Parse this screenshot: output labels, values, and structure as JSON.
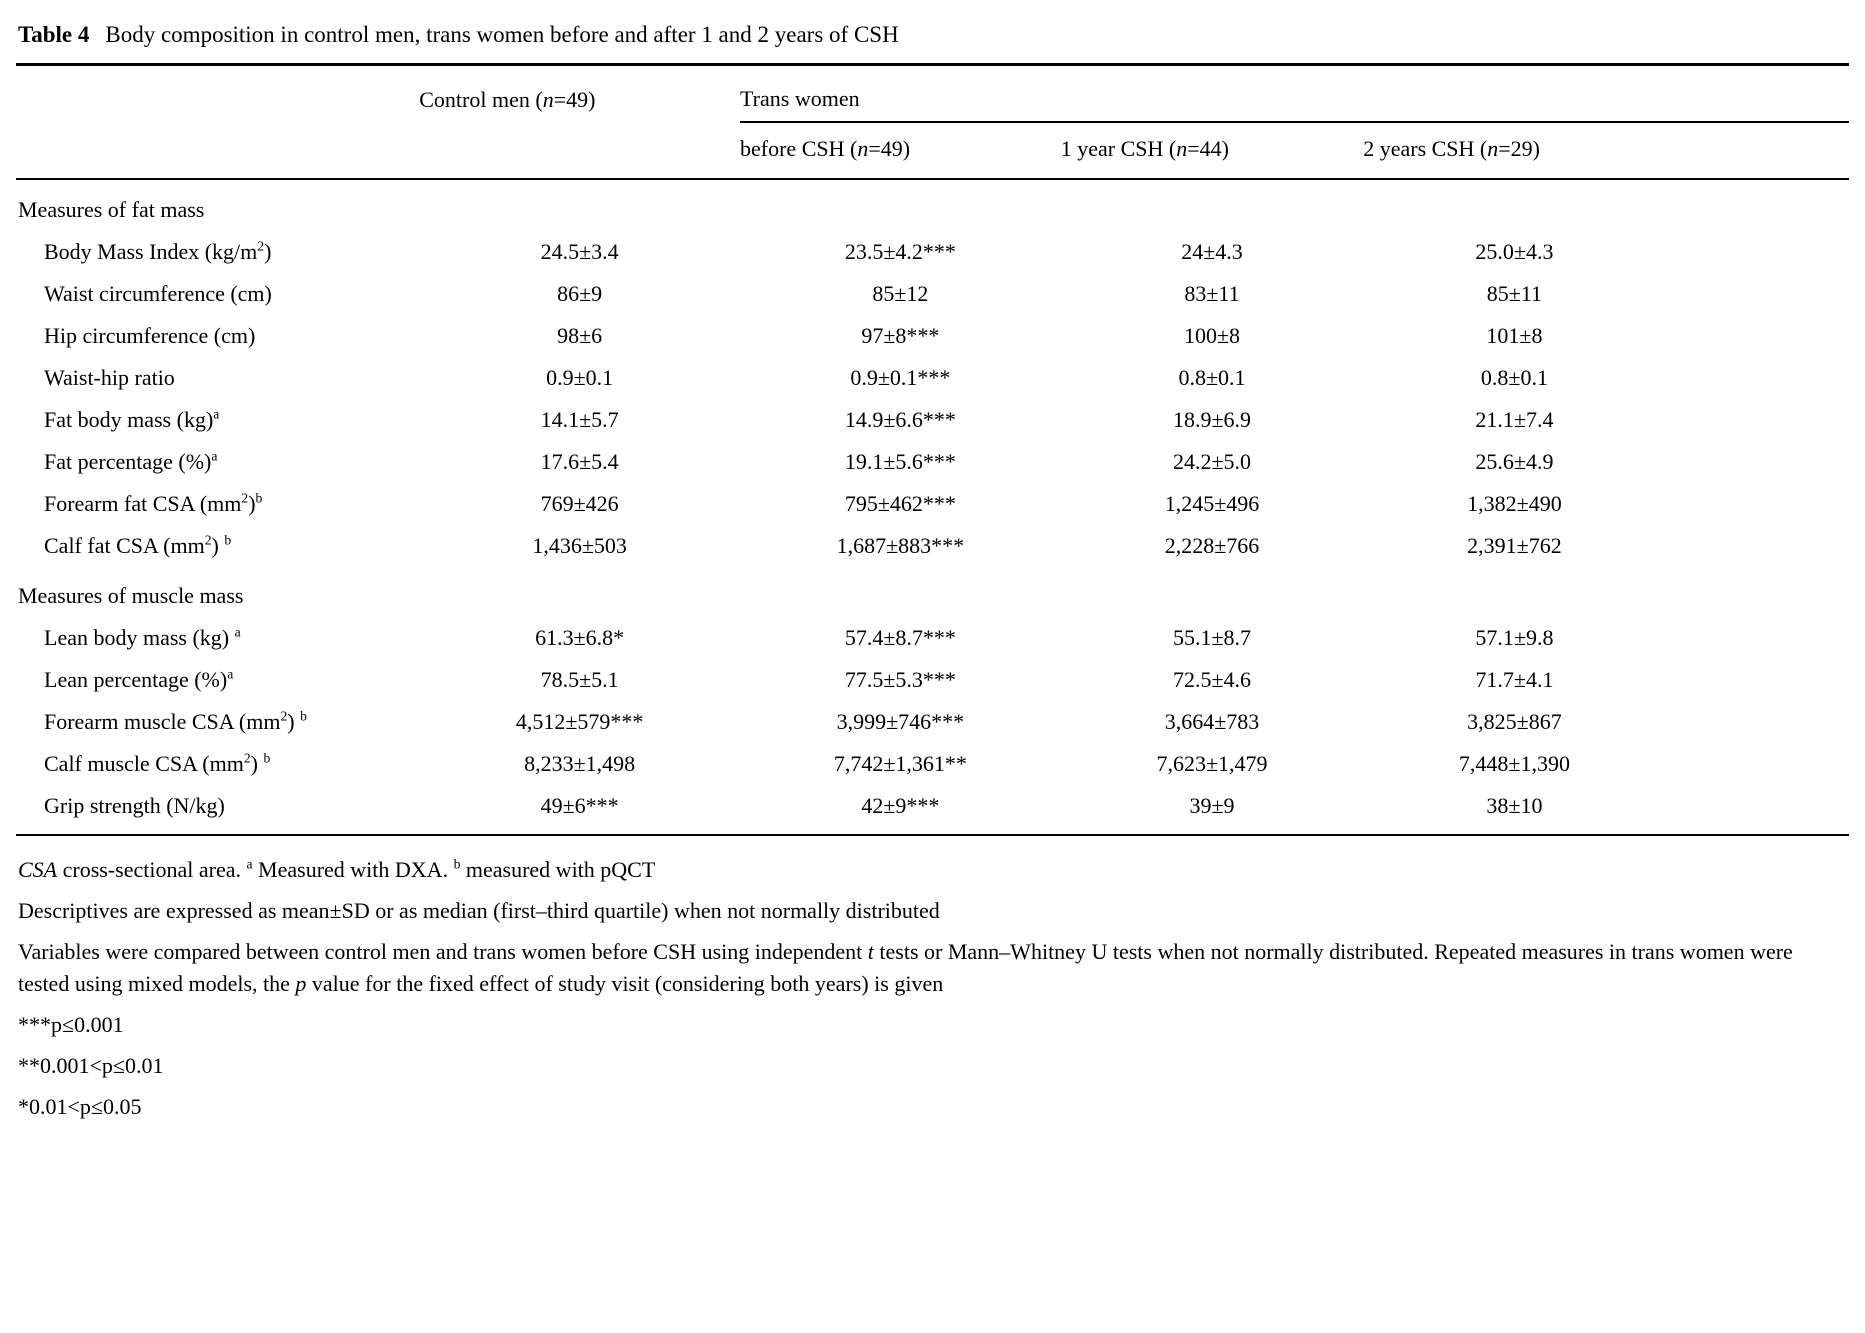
{
  "caption": {
    "label": "Table 4",
    "title": "Body composition in control men, trans women before and after 1 and 2 years of CSH"
  },
  "table": {
    "columns": {
      "control": "Control men (~{n}=49)",
      "trans_group": "Trans women",
      "sub": [
        "before CSH (~{n}=49)",
        "1 year CSH (~{n}=44)",
        "2 years CSH (~{n}=29)"
      ]
    },
    "sections": [
      {
        "header": "Measures of fat mass",
        "rows": [
          {
            "label": "Body Mass Index (kg/m^{2})",
            "values": [
              "24.5±3.4",
              "23.5±4.2***",
              "24±4.3",
              "25.0±4.3"
            ]
          },
          {
            "label": "Waist circumference (cm)",
            "values": [
              "86±9",
              "85±12",
              "83±11",
              "85±11"
            ]
          },
          {
            "label": "Hip circumference (cm)",
            "values": [
              "98±6",
              "97±8***",
              "100±8",
              "101±8"
            ]
          },
          {
            "label": "Waist-hip ratio",
            "values": [
              "0.9±0.1",
              "0.9±0.1***",
              "0.8±0.1",
              "0.8±0.1"
            ]
          },
          {
            "label": "Fat body mass (kg)^{a}",
            "values": [
              "14.1±5.7",
              "14.9±6.6***",
              "18.9±6.9",
              "21.1±7.4"
            ]
          },
          {
            "label": "Fat percentage (%)^{a}",
            "values": [
              "17.6±5.4",
              "19.1±5.6***",
              "24.2±5.0",
              "25.6±4.9"
            ]
          },
          {
            "label": "Forearm fat CSA (mm^{2})^{b}",
            "values": [
              "769±426",
              "795±462***",
              "1,245±496",
              "1,382±490"
            ]
          },
          {
            "label": "Calf fat CSA (mm^{2}) ^{b}",
            "values": [
              "1,436±503",
              "1,687±883***",
              "2,228±766",
              "2,391±762"
            ]
          }
        ]
      },
      {
        "header": "Measures of muscle mass",
        "rows": [
          {
            "label": "Lean body mass (kg) ^{a}",
            "values": [
              "61.3±6.8*",
              "57.4±8.7***",
              "55.1±8.7",
              "57.1±9.8"
            ]
          },
          {
            "label": "Lean percentage (%)^{a}",
            "values": [
              "78.5±5.1",
              "77.5±5.3***",
              "72.5±4.6",
              "71.7±4.1"
            ]
          },
          {
            "label": "Forearm muscle CSA (mm^{2}) ^{b}",
            "values": [
              "4,512±579***",
              "3,999±746***",
              "3,664±783",
              "3,825±867"
            ]
          },
          {
            "label": "Calf muscle CSA (mm^{2}) ^{b}",
            "values": [
              "8,233±1,498",
              "7,742±1,361**",
              "7,623±1,479",
              "7,448±1,390"
            ]
          },
          {
            "label": "Grip strength (N/kg)",
            "values": [
              "49±6***",
              "42±9***",
              "39±9",
              "38±10"
            ]
          }
        ]
      }
    ]
  },
  "footnotes": [
    "~{CSA} cross-sectional area. ^{a} Measured with DXA. ^{b} measured with pQCT",
    "Descriptives are expressed as mean±SD or as median (first–third quartile) when not normally distributed",
    "Variables were compared between control men and trans women before CSH using independent ~{t} tests or Mann–Whitney U tests when not normally distributed. Repeated measures in trans women were tested using mixed models, the ~{p} value for the fixed effect of study visit (considering both years) is given",
    "***p≤0.001",
    "**0.001<p≤0.01",
    "*0.01<p≤0.05"
  ]
}
